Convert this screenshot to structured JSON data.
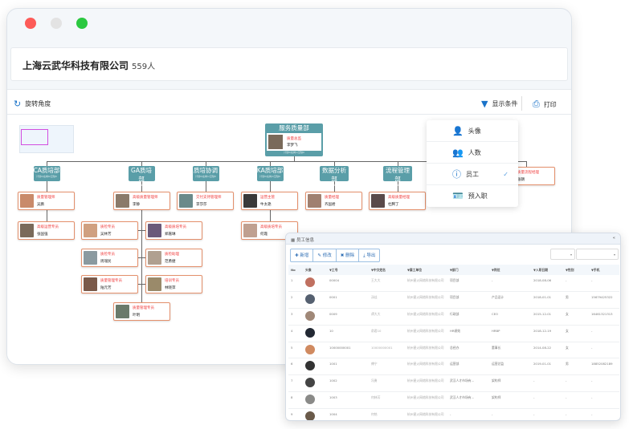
{
  "window": {
    "controls": [
      "close",
      "minimize",
      "maximize"
    ]
  },
  "header": {
    "company": "上海云武华科技有限公司",
    "count": "559人"
  },
  "toolbar": {
    "rotate": "旋转角度",
    "display": "显示条件",
    "print": "打印"
  },
  "menu": {
    "items": [
      {
        "label": "头像",
        "icon": "user-icon",
        "checked": false
      },
      {
        "label": "人数",
        "icon": "users-icon",
        "checked": false
      },
      {
        "label": "员工",
        "icon": "info-icon",
        "checked": true
      },
      {
        "label": "预入职",
        "icon": "badge-icon",
        "checked": false
      }
    ]
  },
  "org": {
    "root": {
      "name": "服务质量部",
      "role": "质量总监",
      "person": "李梦飞",
      "sub": "计划0/在岗1/空缺0"
    },
    "depts": [
      {
        "name": "CA质培部",
        "sub": "计划0/在岗6/空缺0"
      },
      {
        "name": "GA质培部",
        "sub": "计划0/在岗8/空缺0"
      },
      {
        "name": "质培协调",
        "sub": "计划0/在岗1/空缺0"
      },
      {
        "name": "KA质培部",
        "sub": "计划0/在岗2/空缺0"
      },
      {
        "name": "数据分析部",
        "sub": "计划0/在岗1/空缺0"
      },
      {
        "name": "流程管理部",
        "sub": "计划0/在岗1/空缺0"
      }
    ],
    "cards": [
      {
        "role": "质量管理师",
        "person": "吴鹏"
      },
      {
        "role": "高级质量管理师",
        "person": "李静"
      },
      {
        "role": "交付支持管理师",
        "person": "李莎莎"
      },
      {
        "role": "运营主管",
        "person": "牛太艳"
      },
      {
        "role": "质量经理",
        "person": "齐国君"
      },
      {
        "role": "高级质量经理",
        "person": "杜腾丁"
      },
      {
        "role": "质量流程经理",
        "person": "张朗"
      },
      {
        "role": "高级运营专员",
        "person": "张国强"
      },
      {
        "role": "质检专员",
        "person": "吴林芳"
      },
      {
        "role": "高级质培专员",
        "person": "郑嘉琳"
      },
      {
        "role": "高级质培专员",
        "person": "何霞"
      },
      {
        "role": "质检专员",
        "person": "周瑞民"
      },
      {
        "role": "质检助理",
        "person": "范勇捷"
      },
      {
        "role": "质量管理专员",
        "person": "陆元芳"
      },
      {
        "role": "培训专员",
        "person": "林晓萍"
      },
      {
        "role": "质量管理专员",
        "person": "叶明"
      }
    ]
  },
  "dialog": {
    "title": "员工信息",
    "buttons": [
      "新增",
      "修改",
      "删除",
      "导出"
    ],
    "columns": [
      "No",
      "头像",
      "工号",
      "中文姓名",
      "雇工单位",
      "部门",
      "岗位",
      "入职日期",
      "性别",
      "手机"
    ],
    "rows": [
      [
        "1",
        "",
        "00004",
        "王大大",
        "杭州星火网络科技有限公司",
        "项目部",
        "-",
        "2018-08-06",
        "-",
        "-"
      ],
      [
        "2",
        "",
        "0001",
        "汤佳",
        "杭州星火网络科技有限公司",
        "项目部",
        "产品设计",
        "2018-01-01",
        "男",
        "15679425322"
      ],
      [
        "3",
        "",
        "0009",
        "谭大大",
        "杭州星火网络科技有限公司",
        "行政部",
        "CEO",
        "2015-12-01",
        "女",
        "16461321313"
      ],
      [
        "4",
        "",
        "10",
        "俞君10",
        "杭州星火网络科技有限公司",
        "HR绩效",
        "HRBP",
        "2018-12-19",
        "女",
        "-"
      ],
      [
        "5",
        "",
        "10000000001",
        "10000000001",
        "杭州星火网络科技有限公司",
        "总经办",
        "董事长",
        "2014-08-22",
        "女",
        "-"
      ],
      [
        "6",
        "",
        "1001",
        "傅宁",
        "杭州星火网络科技有限公司",
        "运营部",
        "运营总监",
        "2019-01-01",
        "男",
        "18852082189"
      ],
      [
        "7",
        "",
        "1002",
        "冯勇",
        "杭州星火网络科技有限公司",
        "武汉人才市场有…",
        "架构师",
        "-",
        "-",
        "-"
      ],
      [
        "8",
        "",
        "1003",
        "何林芳",
        "杭州星火网络科技有限公司",
        "武汉人才市场有…",
        "架构师",
        "-",
        "-",
        "-"
      ],
      [
        "9",
        "",
        "1004",
        "何铭",
        "杭州星火网络科技有限公司",
        "-",
        "-",
        "-",
        "-",
        "-"
      ]
    ]
  },
  "colors": {
    "accent": "#1a73c9",
    "dept": "#5a9ea8",
    "card_border": "#e4906c",
    "role": "#f03c3c"
  }
}
